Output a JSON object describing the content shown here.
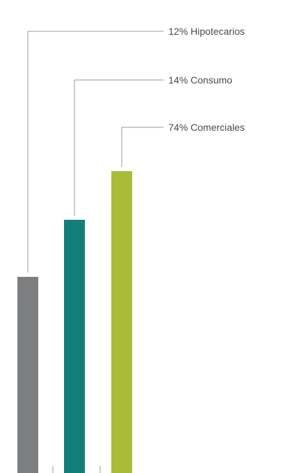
{
  "chart_data": {
    "type": "bar",
    "title": "",
    "xlabel": "",
    "ylabel": "",
    "categories": [
      "Hipotecarios",
      "Consumo",
      "Comerciales"
    ],
    "values": [
      12,
      14,
      74
    ],
    "labels": [
      "12% Hipotecarios",
      "14% Consumo",
      "74% Comerciales"
    ],
    "colors": [
      "#7d7e80",
      "#127e7a",
      "#a8bc38"
    ],
    "value_unit": "%",
    "scale_note": "bar heights are not proportional to the percentages",
    "grid": false,
    "legend": "none"
  }
}
